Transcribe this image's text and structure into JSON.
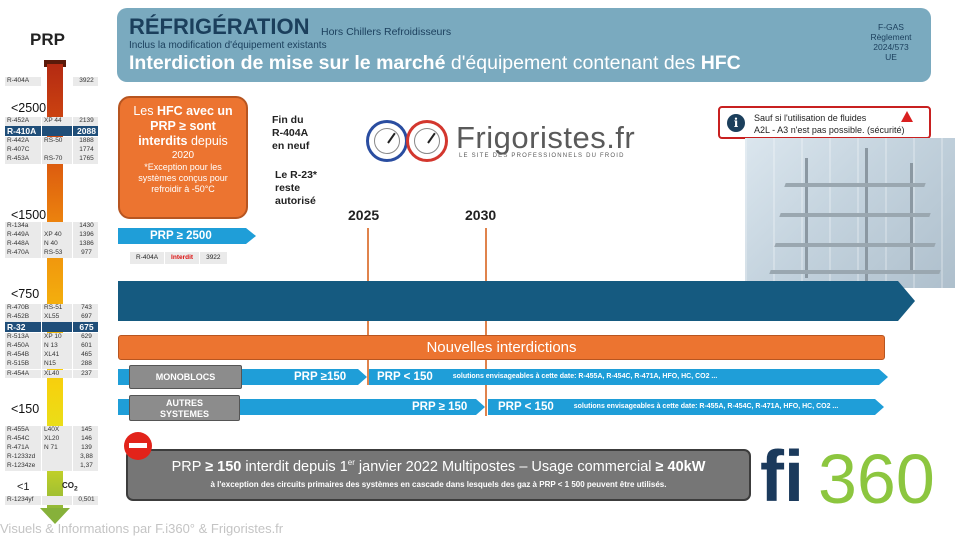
{
  "scale": {
    "title": "PRP",
    "thresholds": [
      "<2500",
      "<1500",
      "<750",
      "<150",
      "<1"
    ],
    "co2_label": "CO",
    "co2_sub": "2",
    "top_ref": {
      "name": "R-404A",
      "code": "",
      "value": "3922"
    },
    "group_2500": [
      {
        "name": "R-452A",
        "code": "XP 44",
        "value": "2139"
      },
      {
        "name": "R-410A",
        "code": "",
        "value": "2088",
        "highlight": true
      },
      {
        "name": "R-442A",
        "code": "RS-50",
        "value": "1888"
      },
      {
        "name": "R-407C",
        "code": "",
        "value": "1774"
      },
      {
        "name": "R-453A",
        "code": "RS-70",
        "value": "1765"
      }
    ],
    "group_1500": [
      {
        "name": "R-134a",
        "code": "",
        "value": "1430"
      },
      {
        "name": "R-449A",
        "code": "XP 40",
        "value": "1396"
      },
      {
        "name": "R-448A",
        "code": "N 40",
        "value": "1386"
      },
      {
        "name": "R-470A",
        "code": "RS-53",
        "value": "977"
      }
    ],
    "group_750": [
      {
        "name": "R-470B",
        "code": "RS-51",
        "value": "743"
      },
      {
        "name": "R-452B",
        "code": "XL55",
        "value": "697"
      },
      {
        "name": "R-32",
        "code": "",
        "value": "675",
        "highlight": true
      },
      {
        "name": "R-513A",
        "code": "XP 10",
        "value": "629"
      },
      {
        "name": "R-450A",
        "code": "N 13",
        "value": "601"
      },
      {
        "name": "R-454B",
        "code": "XL41",
        "value": "465"
      },
      {
        "name": "R-515B",
        "code": "N15",
        "value": "288"
      },
      {
        "name": "R-454A",
        "code": "XL40",
        "value": "237"
      }
    ],
    "group_150": [
      {
        "name": "R-455A",
        "code": "L40X",
        "value": "145"
      },
      {
        "name": "R-454C",
        "code": "XL20",
        "value": "146"
      },
      {
        "name": "R-471A",
        "code": "N 71",
        "value": "139"
      },
      {
        "name": "R-1233zd",
        "code": "",
        "value": "3,88"
      },
      {
        "name": "R-1234ze",
        "code": "",
        "value": "1,37"
      }
    ],
    "group_1": [
      {
        "name": "R-1234yf",
        "code": "",
        "value": "0,501"
      }
    ]
  },
  "header": {
    "title": "RÉFRIGÉRATION",
    "subtitle": "Hors Chillers Refroidisseurs",
    "note": "Inclus la modification d'équipement existants",
    "main_bold1": "Interdiction de mise sur le marché",
    "main_plain": " d'équipement contenant des ",
    "main_bold2": "HFC",
    "reg_line1": "F-GAS",
    "reg_line2": "Règlement",
    "reg_line3": "2024/573",
    "reg_line4": "UE"
  },
  "hfc_box": {
    "pre": "Les ",
    "main": "HFC avec un PRP ≥ sont interdits",
    "post": " depuis",
    "year": "2020",
    "note": "*Exception pour les systèmes conçus pour refroidir à -50°C"
  },
  "notes": {
    "r404_l1": "Fin du",
    "r404_l2": "R-404A",
    "r404_l3": "en neuf",
    "r23_l1": "Le R-23*",
    "r23_l2": "reste",
    "r23_l3": "autorisé"
  },
  "prp2500": {
    "label": "PRP ≥ 2500",
    "ref_name": "R-404A",
    "ref_status": "Interdit",
    "ref_value": "3922"
  },
  "logo": {
    "name": "Frigoristes.fr",
    "tagline": "LE SITE DES PROFESSIONNELS DU FROID"
  },
  "info": {
    "line1": "Sauf si l'utilisation de fluides",
    "line2": "A2L - A3 n'est pas possible. (sécurité)"
  },
  "timeline": {
    "year1": "2025",
    "year2": "2030",
    "banner": "Nouvelles interdictions"
  },
  "rows": {
    "monoblocs": "MONOBLOCS",
    "autres_l1": "AUTRES",
    "autres_l2": "SYSTEMES",
    "mono_ge": "PRP ≥150",
    "mono_lt": "PRP < 150",
    "mono_solutions": "solutions envisageables à cette date: R-455A, R-454C, R-471A, HFO, HC, CO2 ...",
    "autres_ge": "PRP ≥ 150",
    "autres_lt": "PRP < 150",
    "autres_solutions": "solutions envisageables à cette date: R-455A, R-454C, R-471A, HFO, HC, CO2 ..."
  },
  "bottom": {
    "main_a": "PRP ",
    "main_b": "≥ 150",
    "main_c": "  interdit depuis 1",
    "sup": "er",
    "main_d": " janvier 2022 Multipostes – Usage commercial ",
    "main_e": "≥ 40kW",
    "sub": "à l'exception des circuits primaires des systèmes en cascade dans lesquels des gaz à PRP < 1 500 peuvent être utilisés."
  },
  "fi_logo": {
    "text_fi": "fi",
    "text_num": "360"
  },
  "footer": "Visuels & Informations par F.i360° & Frigoristes.fr",
  "colors": {
    "accent_blue": "#1f9ed8",
    "dark_blue": "#155a80",
    "orange": "#ec7430",
    "header_bg": "#7aaabf"
  }
}
